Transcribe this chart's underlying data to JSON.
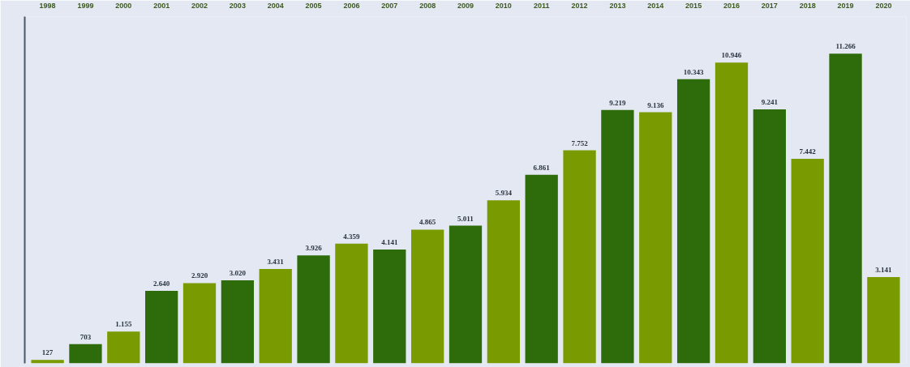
{
  "chart_data": {
    "type": "bar",
    "categories": [
      "1998",
      "1999",
      "2000",
      "2001",
      "2002",
      "2003",
      "2004",
      "2005",
      "2006",
      "2007",
      "2008",
      "2009",
      "2010",
      "2011",
      "2012",
      "2013",
      "2014",
      "2015",
      "2016",
      "2017",
      "2018",
      "2019",
      "2020"
    ],
    "values": [
      127,
      703,
      1155,
      2640,
      2920,
      3020,
      3431,
      3926,
      4359,
      4141,
      4865,
      5011,
      5934,
      6861,
      7752,
      9219,
      9136,
      10343,
      10946,
      9241,
      7442,
      11266,
      3141
    ],
    "value_labels": [
      "127",
      "703",
      "1.155",
      "2.640",
      "2.920",
      "3.020",
      "3.431",
      "3.926",
      "4.359",
      "4.141",
      "4.865",
      "5.011",
      "5.934",
      "6.861",
      "7.752",
      "9.219",
      "9.136",
      "10.343",
      "10.946",
      "9.241",
      "7.442",
      "11.266",
      "3.141"
    ],
    "colors": [
      "#7a9a01",
      "#2e6b0a",
      "#7a9a01",
      "#2e6b0a",
      "#7a9a01",
      "#2e6b0a",
      "#7a9a01",
      "#2e6b0a",
      "#7a9a01",
      "#2e6b0a",
      "#7a9a01",
      "#2e6b0a",
      "#7a9a01",
      "#2e6b0a",
      "#7a9a01",
      "#2e6b0a",
      "#7a9a01",
      "#2e6b0a",
      "#7a9a01",
      "#2e6b0a",
      "#7a9a01",
      "#2e6b0a",
      "#7a9a01"
    ],
    "grid": false
  }
}
